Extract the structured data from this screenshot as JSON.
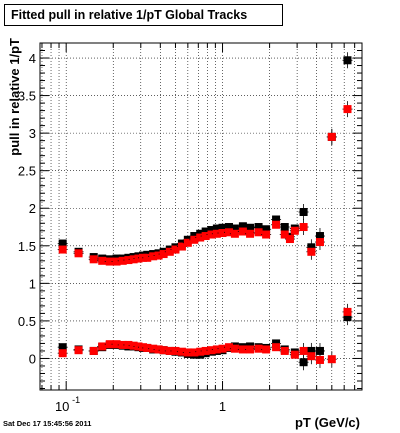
{
  "footer": {
    "timestamp": "Sat Dec 17 15:45:56 2011"
  },
  "colors": {
    "series_black": "#000000",
    "series_red": "#ff0000",
    "grid": "#000000"
  },
  "chart_data": {
    "type": "scatter",
    "title": "Fitted pull in relative 1/pT  Global Tracks",
    "xlabel": "pT (GeV/c)",
    "ylabel": "pull in relative 1/pT",
    "x_scale": "log",
    "xlim": [
      0.068,
      7.8
    ],
    "ylim": [
      -0.42,
      4.2
    ],
    "x_ticks": [
      {
        "value": 0.1,
        "label": "10",
        "exp": "-1"
      },
      {
        "value": 1,
        "label": "1",
        "exp": ""
      }
    ],
    "y_ticks": [
      {
        "value": 0,
        "label": "0"
      },
      {
        "value": 0.5,
        "label": "0.5"
      },
      {
        "value": 1,
        "label": "1"
      },
      {
        "value": 1.5,
        "label": "1.5"
      },
      {
        "value": 2,
        "label": "2"
      },
      {
        "value": 2.5,
        "label": "2.5"
      },
      {
        "value": 3,
        "label": "3"
      },
      {
        "value": 3.5,
        "label": "3.5"
      },
      {
        "value": 4,
        "label": "4"
      }
    ],
    "grid": true,
    "series": [
      {
        "color": "#000000",
        "points": [
          [
            0.095,
            1.53
          ],
          [
            0.12,
            1.42
          ],
          [
            0.15,
            1.35
          ],
          [
            0.17,
            1.33
          ],
          [
            0.19,
            1.32
          ],
          [
            0.21,
            1.33
          ],
          [
            0.23,
            1.33
          ],
          [
            0.25,
            1.34
          ],
          [
            0.27,
            1.35
          ],
          [
            0.29,
            1.36
          ],
          [
            0.31,
            1.37
          ],
          [
            0.33,
            1.38
          ],
          [
            0.36,
            1.39
          ],
          [
            0.39,
            1.4
          ],
          [
            0.42,
            1.42
          ],
          [
            0.46,
            1.45
          ],
          [
            0.5,
            1.48
          ],
          [
            0.55,
            1.53
          ],
          [
            0.6,
            1.58
          ],
          [
            0.66,
            1.63
          ],
          [
            0.72,
            1.66
          ],
          [
            0.78,
            1.69
          ],
          [
            0.85,
            1.71
          ],
          [
            0.92,
            1.73
          ],
          [
            1.0,
            1.74
          ],
          [
            1.1,
            1.75
          ],
          [
            1.2,
            1.73
          ],
          [
            1.35,
            1.76
          ],
          [
            1.5,
            1.74
          ],
          [
            1.7,
            1.75
          ],
          [
            1.9,
            1.72
          ],
          [
            2.2,
            1.85
          ],
          [
            2.5,
            1.75
          ],
          [
            2.7,
            1.62
          ],
          [
            2.9,
            1.73
          ],
          [
            3.3,
            1.95
          ],
          [
            3.7,
            1.48
          ],
          [
            4.2,
            1.63
          ],
          [
            5.0,
            2.95
          ],
          [
            6.3,
            3.97
          ],
          [
            0.095,
            0.15
          ],
          [
            0.12,
            0.12
          ],
          [
            0.15,
            0.1
          ],
          [
            0.17,
            0.15
          ],
          [
            0.19,
            0.18
          ],
          [
            0.21,
            0.18
          ],
          [
            0.23,
            0.17
          ],
          [
            0.25,
            0.16
          ],
          [
            0.27,
            0.16
          ],
          [
            0.29,
            0.15
          ],
          [
            0.31,
            0.14
          ],
          [
            0.33,
            0.14
          ],
          [
            0.36,
            0.12
          ],
          [
            0.39,
            0.12
          ],
          [
            0.42,
            0.11
          ],
          [
            0.46,
            0.1
          ],
          [
            0.5,
            0.09
          ],
          [
            0.55,
            0.08
          ],
          [
            0.6,
            0.06
          ],
          [
            0.66,
            0.05
          ],
          [
            0.72,
            0.05
          ],
          [
            0.78,
            0.07
          ],
          [
            0.85,
            0.09
          ],
          [
            0.92,
            0.1
          ],
          [
            1.0,
            0.11
          ],
          [
            1.1,
            0.14
          ],
          [
            1.2,
            0.16
          ],
          [
            1.35,
            0.15
          ],
          [
            1.5,
            0.16
          ],
          [
            1.7,
            0.15
          ],
          [
            1.9,
            0.14
          ],
          [
            2.2,
            0.2
          ],
          [
            2.5,
            0.12
          ],
          [
            2.9,
            0.08
          ],
          [
            3.3,
            -0.05
          ],
          [
            3.7,
            0.1
          ],
          [
            4.2,
            0.1
          ],
          [
            6.3,
            0.55
          ]
        ]
      },
      {
        "color": "#ff0000",
        "points": [
          [
            0.095,
            1.45
          ],
          [
            0.12,
            1.4
          ],
          [
            0.15,
            1.32
          ],
          [
            0.17,
            1.3
          ],
          [
            0.19,
            1.29
          ],
          [
            0.21,
            1.29
          ],
          [
            0.23,
            1.3
          ],
          [
            0.25,
            1.31
          ],
          [
            0.27,
            1.32
          ],
          [
            0.29,
            1.33
          ],
          [
            0.31,
            1.34
          ],
          [
            0.33,
            1.34
          ],
          [
            0.36,
            1.36
          ],
          [
            0.39,
            1.37
          ],
          [
            0.42,
            1.39
          ],
          [
            0.46,
            1.42
          ],
          [
            0.5,
            1.45
          ],
          [
            0.55,
            1.49
          ],
          [
            0.6,
            1.54
          ],
          [
            0.66,
            1.58
          ],
          [
            0.72,
            1.61
          ],
          [
            0.78,
            1.63
          ],
          [
            0.85,
            1.65
          ],
          [
            0.92,
            1.66
          ],
          [
            1.0,
            1.67
          ],
          [
            1.1,
            1.68
          ],
          [
            1.2,
            1.66
          ],
          [
            1.35,
            1.69
          ],
          [
            1.5,
            1.66
          ],
          [
            1.7,
            1.68
          ],
          [
            1.9,
            1.65
          ],
          [
            2.2,
            1.78
          ],
          [
            2.5,
            1.65
          ],
          [
            2.7,
            1.59
          ],
          [
            2.9,
            1.7
          ],
          [
            3.3,
            1.75
          ],
          [
            3.7,
            1.42
          ],
          [
            4.2,
            1.55
          ],
          [
            5.0,
            2.95
          ],
          [
            6.3,
            3.32
          ],
          [
            0.095,
            0.07
          ],
          [
            0.12,
            0.11
          ],
          [
            0.15,
            0.1
          ],
          [
            0.17,
            0.16
          ],
          [
            0.19,
            0.19
          ],
          [
            0.21,
            0.19
          ],
          [
            0.23,
            0.18
          ],
          [
            0.25,
            0.18
          ],
          [
            0.27,
            0.17
          ],
          [
            0.29,
            0.16
          ],
          [
            0.31,
            0.15
          ],
          [
            0.33,
            0.14
          ],
          [
            0.36,
            0.13
          ],
          [
            0.39,
            0.12
          ],
          [
            0.42,
            0.11
          ],
          [
            0.46,
            0.1
          ],
          [
            0.5,
            0.1
          ],
          [
            0.55,
            0.09
          ],
          [
            0.6,
            0.08
          ],
          [
            0.66,
            0.08
          ],
          [
            0.72,
            0.09
          ],
          [
            0.78,
            0.1
          ],
          [
            0.85,
            0.11
          ],
          [
            0.92,
            0.12
          ],
          [
            1.0,
            0.13
          ],
          [
            1.1,
            0.15
          ],
          [
            1.2,
            0.13
          ],
          [
            1.35,
            0.12
          ],
          [
            1.5,
            0.12
          ],
          [
            1.7,
            0.13
          ],
          [
            1.9,
            0.12
          ],
          [
            2.2,
            0.15
          ],
          [
            2.5,
            0.1
          ],
          [
            2.9,
            0.05
          ],
          [
            3.3,
            0.1
          ],
          [
            3.7,
            0.03
          ],
          [
            4.2,
            -0.02
          ],
          [
            5.0,
            -0.01
          ],
          [
            6.3,
            0.62
          ]
        ]
      }
    ]
  }
}
